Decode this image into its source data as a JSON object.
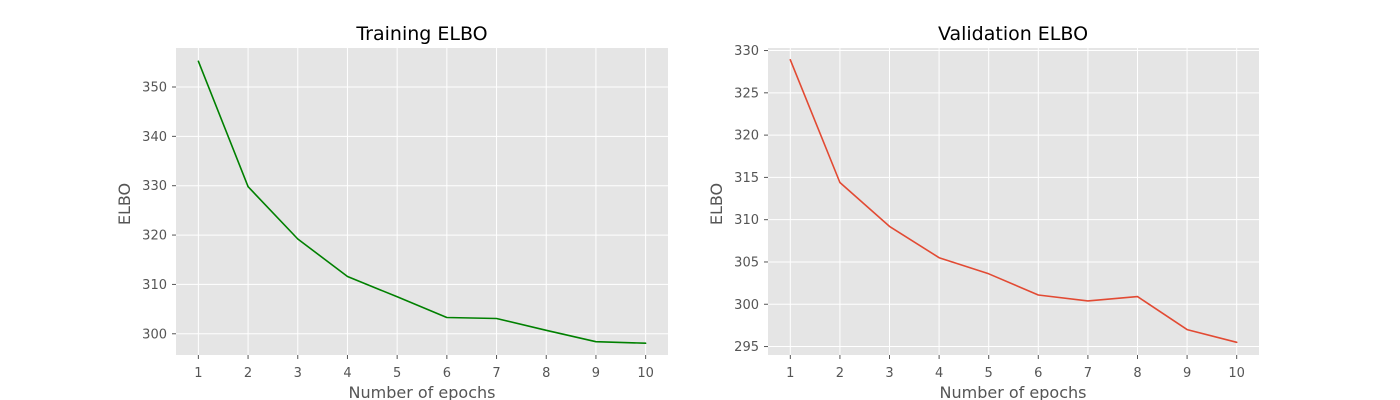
{
  "chart_data": [
    {
      "type": "line",
      "title": "Training ELBO",
      "xlabel": "Number of epochs",
      "ylabel": "ELBO",
      "x": [
        1,
        2,
        3,
        4,
        5,
        6,
        7,
        8,
        9,
        10
      ],
      "xlim": [
        0.55,
        10.45
      ],
      "ylim": [
        295.7,
        357.9
      ],
      "xticks": [
        1,
        2,
        3,
        4,
        5,
        6,
        7,
        8,
        9,
        10
      ],
      "yticks": [
        300,
        310,
        320,
        330,
        340,
        350
      ],
      "grid": true,
      "background_color": "#e5e5e5",
      "series": [
        {
          "color": "#008000",
          "values": [
            355.2,
            329.8,
            319.2,
            311.6,
            307.5,
            303.3,
            303.1,
            300.7,
            298.4,
            298.1
          ]
        }
      ]
    },
    {
      "type": "line",
      "title": "Validation ELBO",
      "xlabel": "Number of epochs",
      "ylabel": "ELBO",
      "x": [
        1,
        2,
        3,
        4,
        5,
        6,
        7,
        8,
        9,
        10
      ],
      "xlim": [
        0.55,
        10.45
      ],
      "ylim": [
        294.0,
        330.3
      ],
      "xticks": [
        1,
        2,
        3,
        4,
        5,
        6,
        7,
        8,
        9,
        10
      ],
      "yticks": [
        295,
        300,
        305,
        310,
        315,
        320,
        325,
        330
      ],
      "grid": true,
      "background_color": "#e5e5e5",
      "series": [
        {
          "color": "#e24a33",
          "values": [
            328.9,
            314.4,
            309.2,
            305.5,
            303.6,
            301.1,
            300.4,
            300.9,
            297.0,
            295.5
          ]
        }
      ]
    }
  ]
}
